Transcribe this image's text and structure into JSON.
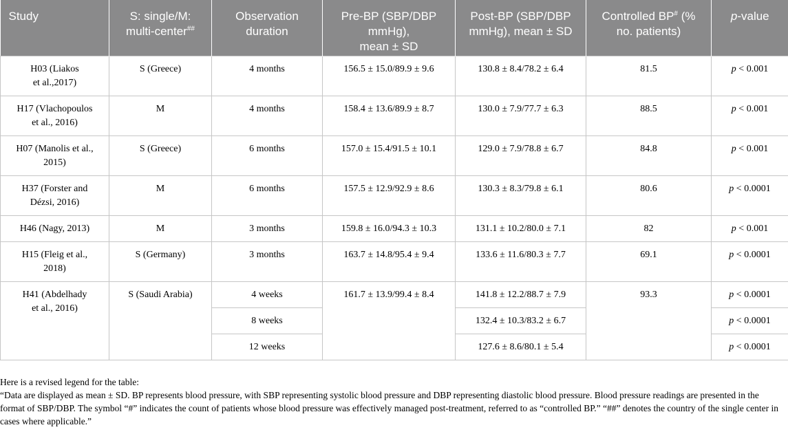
{
  "table": {
    "headers": {
      "study": "Study",
      "center_line1": "S: single/M:",
      "center_line2": "multi-center",
      "center_sup": "##",
      "duration_line1": "Observation",
      "duration_line2": "duration",
      "pre_line1": "Pre-BP (SBP/DBP",
      "pre_line2": "mmHg),",
      "pre_line3": "mean ± SD",
      "post_line1": "Post-BP (SBP/DBP",
      "post_line2": "mmHg), mean ± SD",
      "controlled_a": "Controlled BP",
      "controlled_sup": "#",
      "controlled_b": " (%",
      "controlled_line2": "no. patients)",
      "p_italic": "p",
      "p_rest": "-value"
    },
    "rows": [
      {
        "study_1": "H03 (Liakos",
        "study_2": "et al.,2017)",
        "center": "S (Greece)",
        "duration": "4 months",
        "pre": "156.5 ± 15.0/89.9 ± 9.6",
        "post": "130.8 ± 8.4/78.2 ± 6.4",
        "controlled": "81.5",
        "p_var": "p",
        "p_val": " < 0.001"
      },
      {
        "study_1": "H17 (Vlachopoulos",
        "study_2": "et al., 2016)",
        "center": "M",
        "duration": "4 months",
        "pre": "158.4 ± 13.6/89.9 ± 8.7",
        "post": "130.0 ± 7.9/77.7 ± 6.3",
        "controlled": "88.5",
        "p_var": "p",
        "p_val": " < 0.001"
      },
      {
        "study_1": "H07 (Manolis et al.,",
        "study_2": "2015)",
        "center": "S (Greece)",
        "duration": "6 months",
        "pre": "157.0 ± 15.4/91.5 ± 10.1",
        "post": "129.0 ± 7.9/78.8 ± 6.7",
        "controlled": "84.8",
        "p_var": "p",
        "p_val": " < 0.001"
      },
      {
        "study_1": "H37 (Forster and",
        "study_2": "Dézsi, 2016)",
        "center": "M",
        "duration": "6 months",
        "pre": "157.5 ± 12.9/92.9 ± 8.6",
        "post": "130.3 ± 8.3/79.8 ± 6.1",
        "controlled": "80.6",
        "p_var": "p",
        "p_val": " < 0.0001"
      },
      {
        "study_1": "H46 (Nagy, 2013)",
        "study_2": "",
        "center": "M",
        "duration": "3 months",
        "pre": "159.8 ± 16.0/94.3 ± 10.3",
        "post": "131.1 ± 10.2/80.0 ± 7.1",
        "controlled": "82",
        "p_var": "p",
        "p_val": " < 0.001"
      },
      {
        "study_1": "H15 (Fleig et al.,",
        "study_2": "2018)",
        "center": "S (Germany)",
        "duration": "3 months",
        "pre": "163.7 ± 14.8/95.4 ± 9.4",
        "post": "133.6 ± 11.6/80.3 ± 7.7",
        "controlled": "69.1",
        "p_var": "p",
        "p_val": " < 0.0001"
      }
    ],
    "h41": {
      "study_1": "H41 (Abdelhady",
      "study_2": "et al., 2016)",
      "center": "S (Saudi Arabia)",
      "pre": "161.7 ± 13.9/99.4 ± 8.4",
      "controlled": "93.3",
      "subrows": [
        {
          "duration": "4 weeks",
          "post": "141.8 ± 12.2/88.7 ± 7.9",
          "p_var": "p",
          "p_val": " < 0.0001"
        },
        {
          "duration": "8 weeks",
          "post": "132.4 ± 10.3/83.2 ± 6.7",
          "p_var": "p",
          "p_val": " < 0.0001"
        },
        {
          "duration": "12 weeks",
          "post": "127.6 ± 8.6/80.1 ± 5.4",
          "p_var": "p",
          "p_val": " < 0.0001"
        }
      ]
    }
  },
  "caption": {
    "line1": "Here is a revised legend for the table:",
    "line2": "“Data are displayed as mean ± SD. BP represents blood pressure, with SBP representing systolic blood pressure and DBP representing diastolic blood pressure. Blood pressure readings are presented in the format of SBP/DBP. The symbol “#” indicates the count of patients whose blood pressure was effectively managed post-treatment, referred to as “controlled BP.” “##” denotes the country of the single center in cases where applicable.”"
  }
}
